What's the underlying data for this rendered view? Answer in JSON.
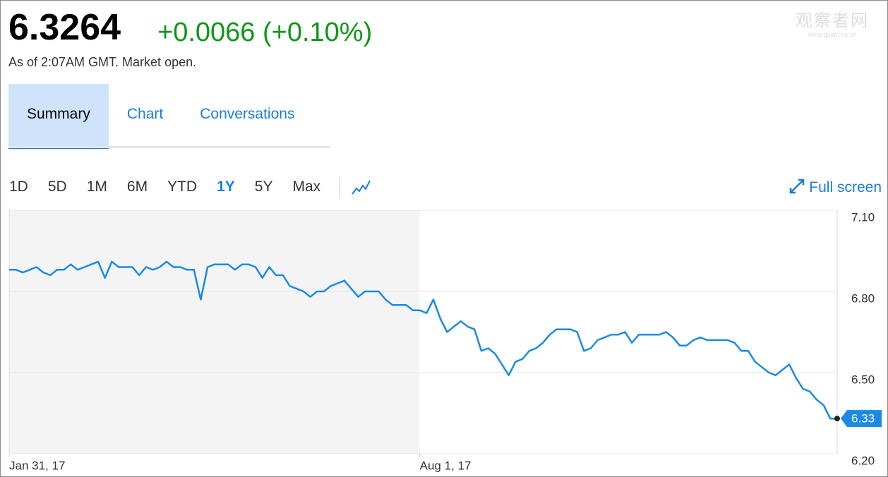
{
  "quote": {
    "price": "6.3264",
    "change": "+0.0066 (+0.10%)",
    "as_of": "As of 2:07AM GMT. Market open."
  },
  "watermark": {
    "title": "观察者网",
    "url": "www.guancha.cn"
  },
  "tabs": {
    "items": [
      "Summary",
      "Chart",
      "Conversations"
    ],
    "active": 0
  },
  "ranges": {
    "items": [
      "1D",
      "5D",
      "1M",
      "6M",
      "YTD",
      "1Y",
      "5Y",
      "Max"
    ],
    "active": 5
  },
  "full_screen": "Full screen",
  "chart_data": {
    "type": "line",
    "categories": [
      "Jan 31, 17",
      null,
      null,
      null,
      null,
      null,
      null,
      null,
      null,
      null,
      null,
      null,
      null,
      null,
      null,
      null,
      null,
      null,
      null,
      null,
      null,
      null,
      null,
      null,
      null,
      null,
      null,
      null,
      null,
      null,
      null,
      null,
      null,
      null,
      null,
      null,
      null,
      null,
      null,
      null,
      null,
      null,
      null,
      null,
      null,
      null,
      null,
      null,
      null,
      null,
      null,
      null,
      null,
      null,
      null,
      null,
      null,
      null,
      null,
      null,
      "Aug 1, 17",
      null,
      null,
      null,
      null,
      null,
      null,
      null,
      null,
      null,
      null,
      null,
      null,
      null,
      null,
      null,
      null,
      null,
      null,
      null,
      null,
      null,
      null,
      null,
      null,
      null,
      null,
      null,
      null,
      null,
      null,
      null,
      null,
      null,
      null,
      null,
      null,
      null,
      null,
      null,
      null,
      null,
      null,
      null,
      null,
      null,
      null,
      null,
      null,
      null,
      null,
      null,
      null,
      null,
      null,
      null,
      null,
      null,
      null,
      null,
      null,
      null
    ],
    "series": [
      {
        "color": "#1a8ae6",
        "values": [
          6.88,
          6.88,
          6.87,
          6.88,
          6.89,
          6.87,
          6.86,
          6.88,
          6.88,
          6.9,
          6.88,
          6.89,
          6.9,
          6.91,
          6.85,
          6.91,
          6.89,
          6.89,
          6.89,
          6.86,
          6.89,
          6.88,
          6.89,
          6.91,
          6.89,
          6.89,
          6.88,
          6.88,
          6.77,
          6.89,
          6.9,
          6.9,
          6.9,
          6.88,
          6.9,
          6.9,
          6.89,
          6.85,
          6.89,
          6.86,
          6.86,
          6.82,
          6.81,
          6.8,
          6.78,
          6.8,
          6.8,
          6.82,
          6.83,
          6.84,
          6.81,
          6.78,
          6.8,
          6.8,
          6.8,
          6.77,
          6.75,
          6.75,
          6.75,
          6.73,
          6.73,
          6.72,
          6.77,
          6.7,
          6.65,
          6.67,
          6.69,
          6.67,
          6.66,
          6.58,
          6.59,
          6.57,
          6.53,
          6.49,
          6.54,
          6.55,
          6.58,
          6.59,
          6.61,
          6.64,
          6.66,
          6.66,
          6.66,
          6.65,
          6.58,
          6.59,
          6.62,
          6.63,
          6.64,
          6.64,
          6.65,
          6.61,
          6.64,
          6.64,
          6.64,
          6.64,
          6.65,
          6.63,
          6.6,
          6.6,
          6.62,
          6.63,
          6.62,
          6.62,
          6.62,
          6.62,
          6.61,
          6.58,
          6.58,
          6.54,
          6.52,
          6.5,
          6.49,
          6.51,
          6.53,
          6.48,
          6.44,
          6.43,
          6.4,
          6.38,
          6.33,
          6.33
        ]
      }
    ],
    "ylim": [
      6.2,
      7.1
    ],
    "yticks": [
      {
        "value": 6.2,
        "label": "6.20"
      },
      {
        "value": 6.5,
        "label": "6.50"
      },
      {
        "value": 6.8,
        "label": "6.80"
      },
      {
        "value": 7.1,
        "label": "7.10"
      }
    ],
    "grid": true,
    "current_value": {
      "value": 6.33,
      "label": "6.33"
    }
  }
}
